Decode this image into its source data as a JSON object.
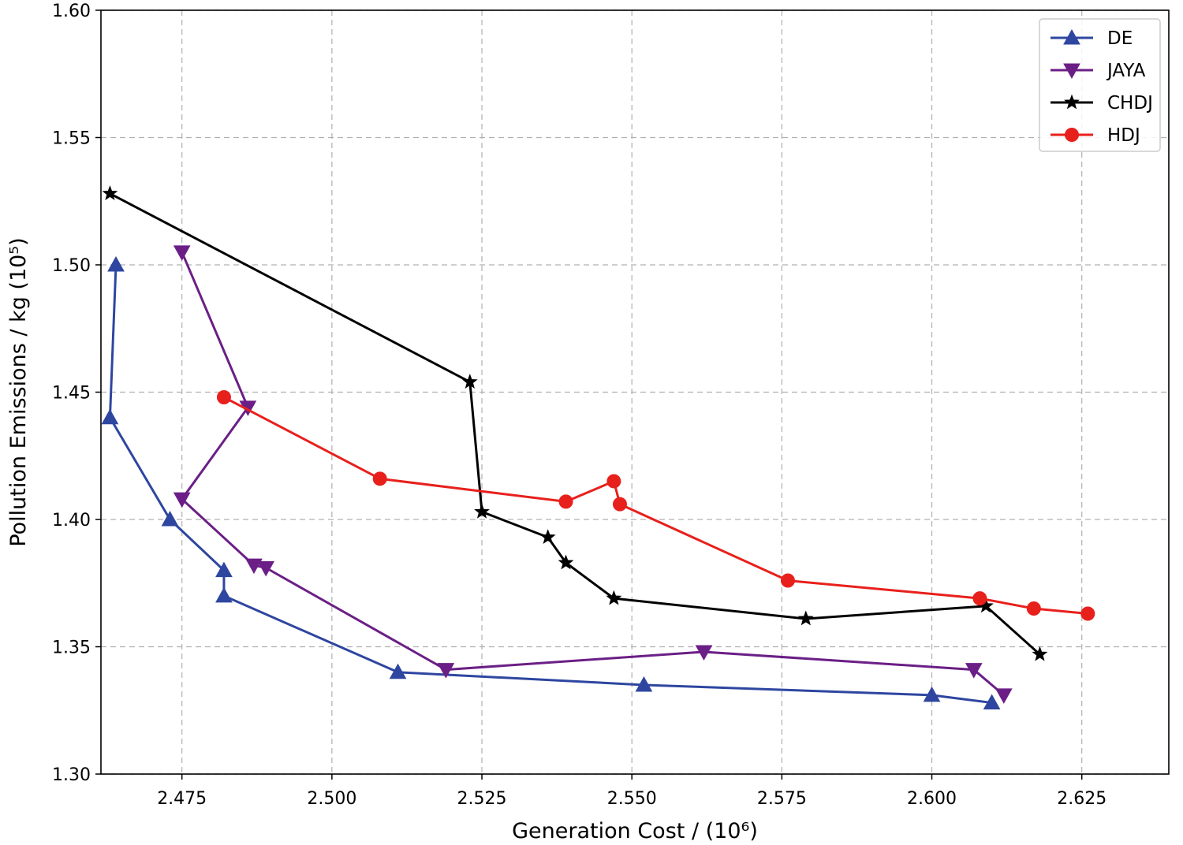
{
  "chart_data": {
    "type": "line",
    "xlabel": "Generation Cost / (10⁶)",
    "ylabel": "Pollution Emissions / kg (10⁵)",
    "xlim": [
      2.4615,
      2.6395
    ],
    "ylim": [
      1.3,
      1.6
    ],
    "xticks": [
      "2.475",
      "2.500",
      "2.525",
      "2.550",
      "2.575",
      "2.600",
      "2.625"
    ],
    "yticks": [
      "1.30",
      "1.35",
      "1.40",
      "1.45",
      "1.50",
      "1.55",
      "1.60"
    ],
    "grid": true,
    "legend_position": "top-right",
    "series": [
      {
        "name": "DE",
        "color": "#2e46a0",
        "marker": "triangle-up",
        "x": [
          2.464,
          2.463,
          2.473,
          2.482,
          2.482,
          2.511,
          2.552,
          2.6,
          2.61
        ],
        "y": [
          1.5,
          1.44,
          1.4,
          1.38,
          1.37,
          1.34,
          1.335,
          1.331,
          1.328
        ]
      },
      {
        "name": "JAYA",
        "color": "#6b1f86",
        "marker": "triangle-down",
        "x": [
          2.475,
          2.486,
          2.475,
          2.487,
          2.489,
          2.519,
          2.562,
          2.607,
          2.612
        ],
        "y": [
          1.505,
          1.444,
          1.408,
          1.382,
          1.381,
          1.341,
          1.348,
          1.341,
          1.331
        ]
      },
      {
        "name": "CHDJ",
        "color": "#000000",
        "marker": "star",
        "x": [
          2.463,
          2.523,
          2.525,
          2.536,
          2.539,
          2.547,
          2.579,
          2.609,
          2.618
        ],
        "y": [
          1.528,
          1.454,
          1.403,
          1.393,
          1.383,
          1.369,
          1.361,
          1.366,
          1.347
        ]
      },
      {
        "name": "HDJ",
        "color": "#e8201c",
        "marker": "circle",
        "x": [
          2.482,
          2.508,
          2.539,
          2.547,
          2.548,
          2.576,
          2.608,
          2.617,
          2.626
        ],
        "y": [
          1.448,
          1.416,
          1.407,
          1.415,
          1.406,
          1.376,
          1.369,
          1.365,
          1.363
        ]
      }
    ]
  }
}
